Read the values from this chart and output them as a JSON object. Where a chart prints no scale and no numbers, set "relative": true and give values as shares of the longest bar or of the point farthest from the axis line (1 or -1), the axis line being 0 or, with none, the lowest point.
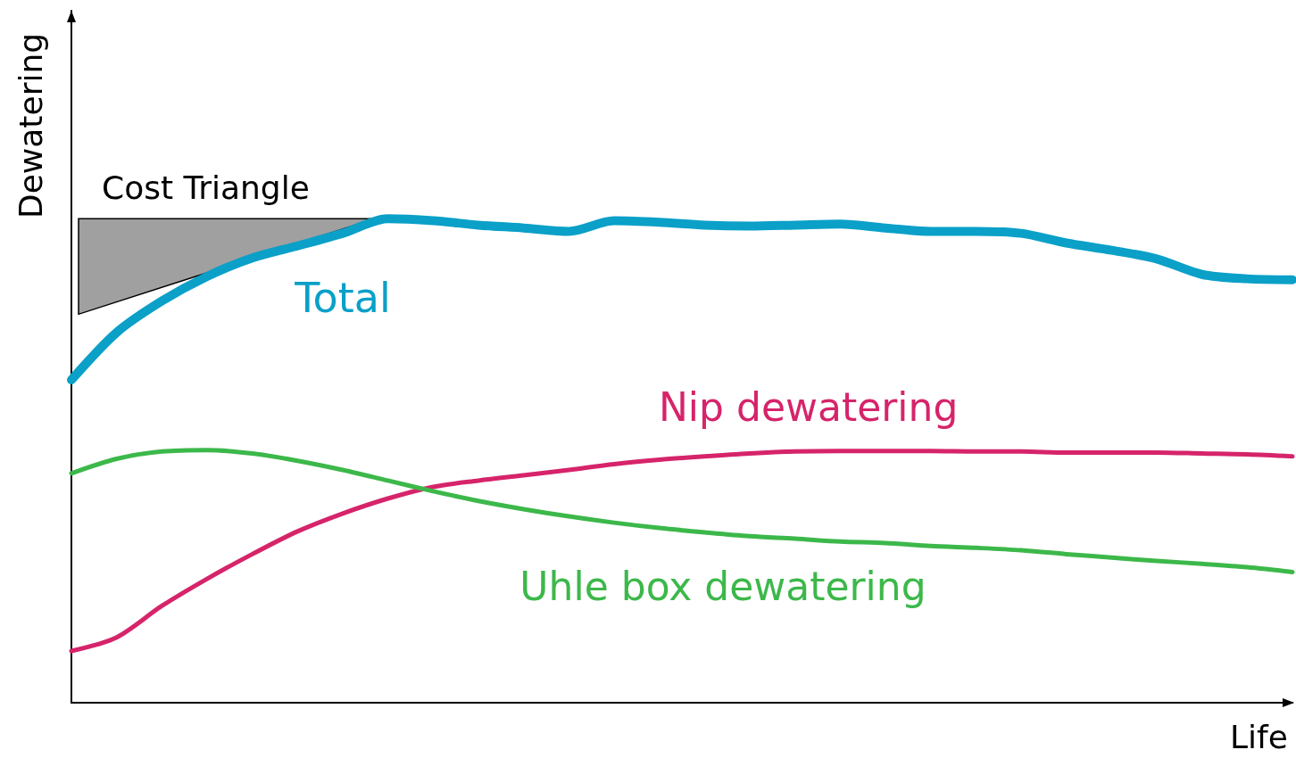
{
  "chart_data": {
    "type": "line",
    "relative": true,
    "xlabel": "Life",
    "ylabel": "Dewatering",
    "categories": [
      null,
      null,
      null,
      null,
      null,
      null,
      null,
      null,
      null,
      null,
      null,
      null,
      null,
      null,
      null,
      null,
      null,
      null,
      null,
      null,
      null,
      null,
      null,
      null,
      null,
      null,
      null,
      null
    ],
    "series": [
      {
        "name": "Total",
        "color": "#0aa0c8",
        "values": [
          0.667,
          0.765,
          0.83,
          0.881,
          0.919,
          0.944,
          0.97,
          1.0,
          0.996,
          0.987,
          0.981,
          0.974,
          0.996,
          0.993,
          0.987,
          0.985,
          0.987,
          0.989,
          0.981,
          0.974,
          0.974,
          0.97,
          0.95,
          0.935,
          0.917,
          0.885,
          0.876,
          0.874
        ]
      },
      {
        "name": "Nip dewatering",
        "color": "#d6246a",
        "values": [
          0.107,
          0.135,
          0.2,
          0.256,
          0.307,
          0.354,
          0.391,
          0.422,
          0.446,
          0.459,
          0.47,
          0.481,
          0.493,
          0.502,
          0.509,
          0.515,
          0.519,
          0.52,
          0.52,
          0.52,
          0.519,
          0.519,
          0.517,
          0.517,
          0.517,
          0.515,
          0.513,
          0.509
        ]
      },
      {
        "name": "Uhle box dewatering",
        "color": "#3cb84a",
        "values": [
          0.474,
          0.504,
          0.519,
          0.522,
          0.515,
          0.5,
          0.481,
          0.459,
          0.437,
          0.417,
          0.4,
          0.385,
          0.372,
          0.361,
          0.352,
          0.344,
          0.339,
          0.333,
          0.33,
          0.324,
          0.32,
          0.315,
          0.307,
          0.3,
          0.293,
          0.287,
          0.28,
          0.27
        ]
      }
    ],
    "annotations": [
      "Cost Triangle"
    ],
    "marker": "none",
    "line_style": "solid",
    "legend": false,
    "grid": false
  }
}
